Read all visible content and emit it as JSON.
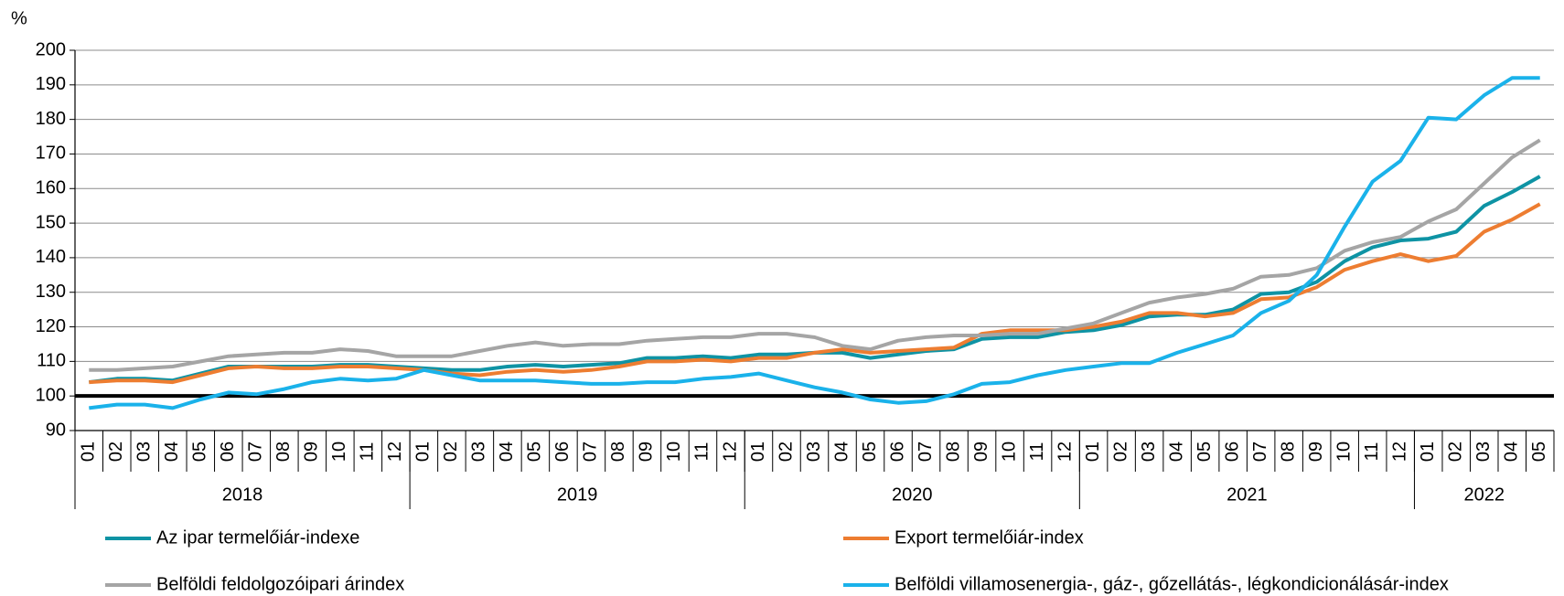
{
  "chart_data": {
    "type": "line",
    "y_label": "%",
    "categories": [
      "01",
      "02",
      "03",
      "04",
      "05",
      "06",
      "07",
      "08",
      "09",
      "10",
      "11",
      "12",
      "01",
      "02",
      "03",
      "04",
      "05",
      "06",
      "07",
      "08",
      "09",
      "10",
      "11",
      "12",
      "01",
      "02",
      "03",
      "04",
      "05",
      "06",
      "07",
      "08",
      "09",
      "10",
      "11",
      "12",
      "01",
      "02",
      "03",
      "04",
      "05",
      "06",
      "07",
      "08",
      "09",
      "10",
      "11",
      "12",
      "01",
      "02",
      "03",
      "04",
      "05"
    ],
    "groups": [
      {
        "label": "2018",
        "size": 12
      },
      {
        "label": "2019",
        "size": 12
      },
      {
        "label": "2020",
        "size": 12
      },
      {
        "label": "2021",
        "size": 12
      },
      {
        "label": "2022",
        "size": 5
      }
    ],
    "ylim": [
      90,
      200
    ],
    "yticks": [
      90,
      100,
      110,
      120,
      130,
      140,
      150,
      160,
      170,
      180,
      190,
      200
    ],
    "grid": true,
    "reference_line": {
      "value": 100,
      "color": "#000000"
    },
    "series": [
      {
        "name": "Az ipar termelőiár-indexe",
        "color": "#0e93a4",
        "values": [
          104,
          105,
          105,
          104.5,
          106.5,
          108.5,
          108.5,
          108.5,
          108.5,
          109,
          109,
          108.5,
          108,
          107.5,
          107.5,
          108.5,
          109,
          108.5,
          109,
          109.5,
          111,
          111,
          111.5,
          111,
          112,
          112,
          112.5,
          112.5,
          111,
          112,
          113,
          113.5,
          116.5,
          117,
          117,
          118.5,
          119,
          120.5,
          123,
          123.5,
          123.5,
          125,
          129.5,
          130,
          133,
          139,
          143,
          145,
          145.5,
          147.5,
          155,
          159,
          163.5
        ]
      },
      {
        "name": "Export termelőiár-index",
        "color": "#ed7d31",
        "values": [
          104,
          104.5,
          104.5,
          104,
          106,
          108,
          108.5,
          108,
          108,
          108.5,
          108.5,
          108,
          107.5,
          106.5,
          106,
          107,
          107.5,
          107,
          107.5,
          108.5,
          110,
          110,
          110.5,
          110,
          111,
          111,
          112.5,
          113.5,
          112.5,
          113,
          113.5,
          114,
          118,
          119,
          119,
          119,
          120,
          121.5,
          124,
          124,
          123,
          124,
          128,
          128.5,
          131.5,
          136.5,
          139,
          141,
          139,
          140.5,
          147.5,
          151,
          155.5
        ]
      },
      {
        "name": "Belföldi feldolgozóipari árindex",
        "color": "#a5a5a5",
        "values": [
          107.5,
          107.5,
          108,
          108.5,
          110,
          111.5,
          112,
          112.5,
          112.5,
          113.5,
          113,
          111.5,
          111.5,
          111.5,
          113,
          114.5,
          115.5,
          114.5,
          115,
          115,
          116,
          116.5,
          117,
          117,
          118,
          118,
          117,
          114.5,
          113.5,
          116,
          117,
          117.5,
          117.5,
          118,
          118,
          119.5,
          121,
          124,
          127,
          128.5,
          129.5,
          131,
          134.5,
          135,
          137,
          142,
          144.5,
          146,
          150.5,
          154,
          161.5,
          169,
          174
        ]
      },
      {
        "name": "Belföldi villamosenergia-, gáz-, gőzellátás-, légkondicionálásár-index",
        "color": "#1ab2ea",
        "values": [
          96.5,
          97.5,
          97.5,
          96.5,
          99,
          101,
          100.5,
          102,
          104,
          105,
          104.5,
          105,
          107.5,
          106,
          104.5,
          104.5,
          104.5,
          104,
          103.5,
          103.5,
          104,
          104,
          105,
          105.5,
          106.5,
          104.5,
          102.5,
          101,
          99,
          98,
          98.5,
          100.5,
          103.5,
          104,
          106,
          107.5,
          108.5,
          109.5,
          109.5,
          112.5,
          115,
          117.5,
          124,
          127.5,
          135,
          149,
          162,
          168,
          180.5,
          180,
          187,
          192,
          192
        ]
      }
    ]
  }
}
